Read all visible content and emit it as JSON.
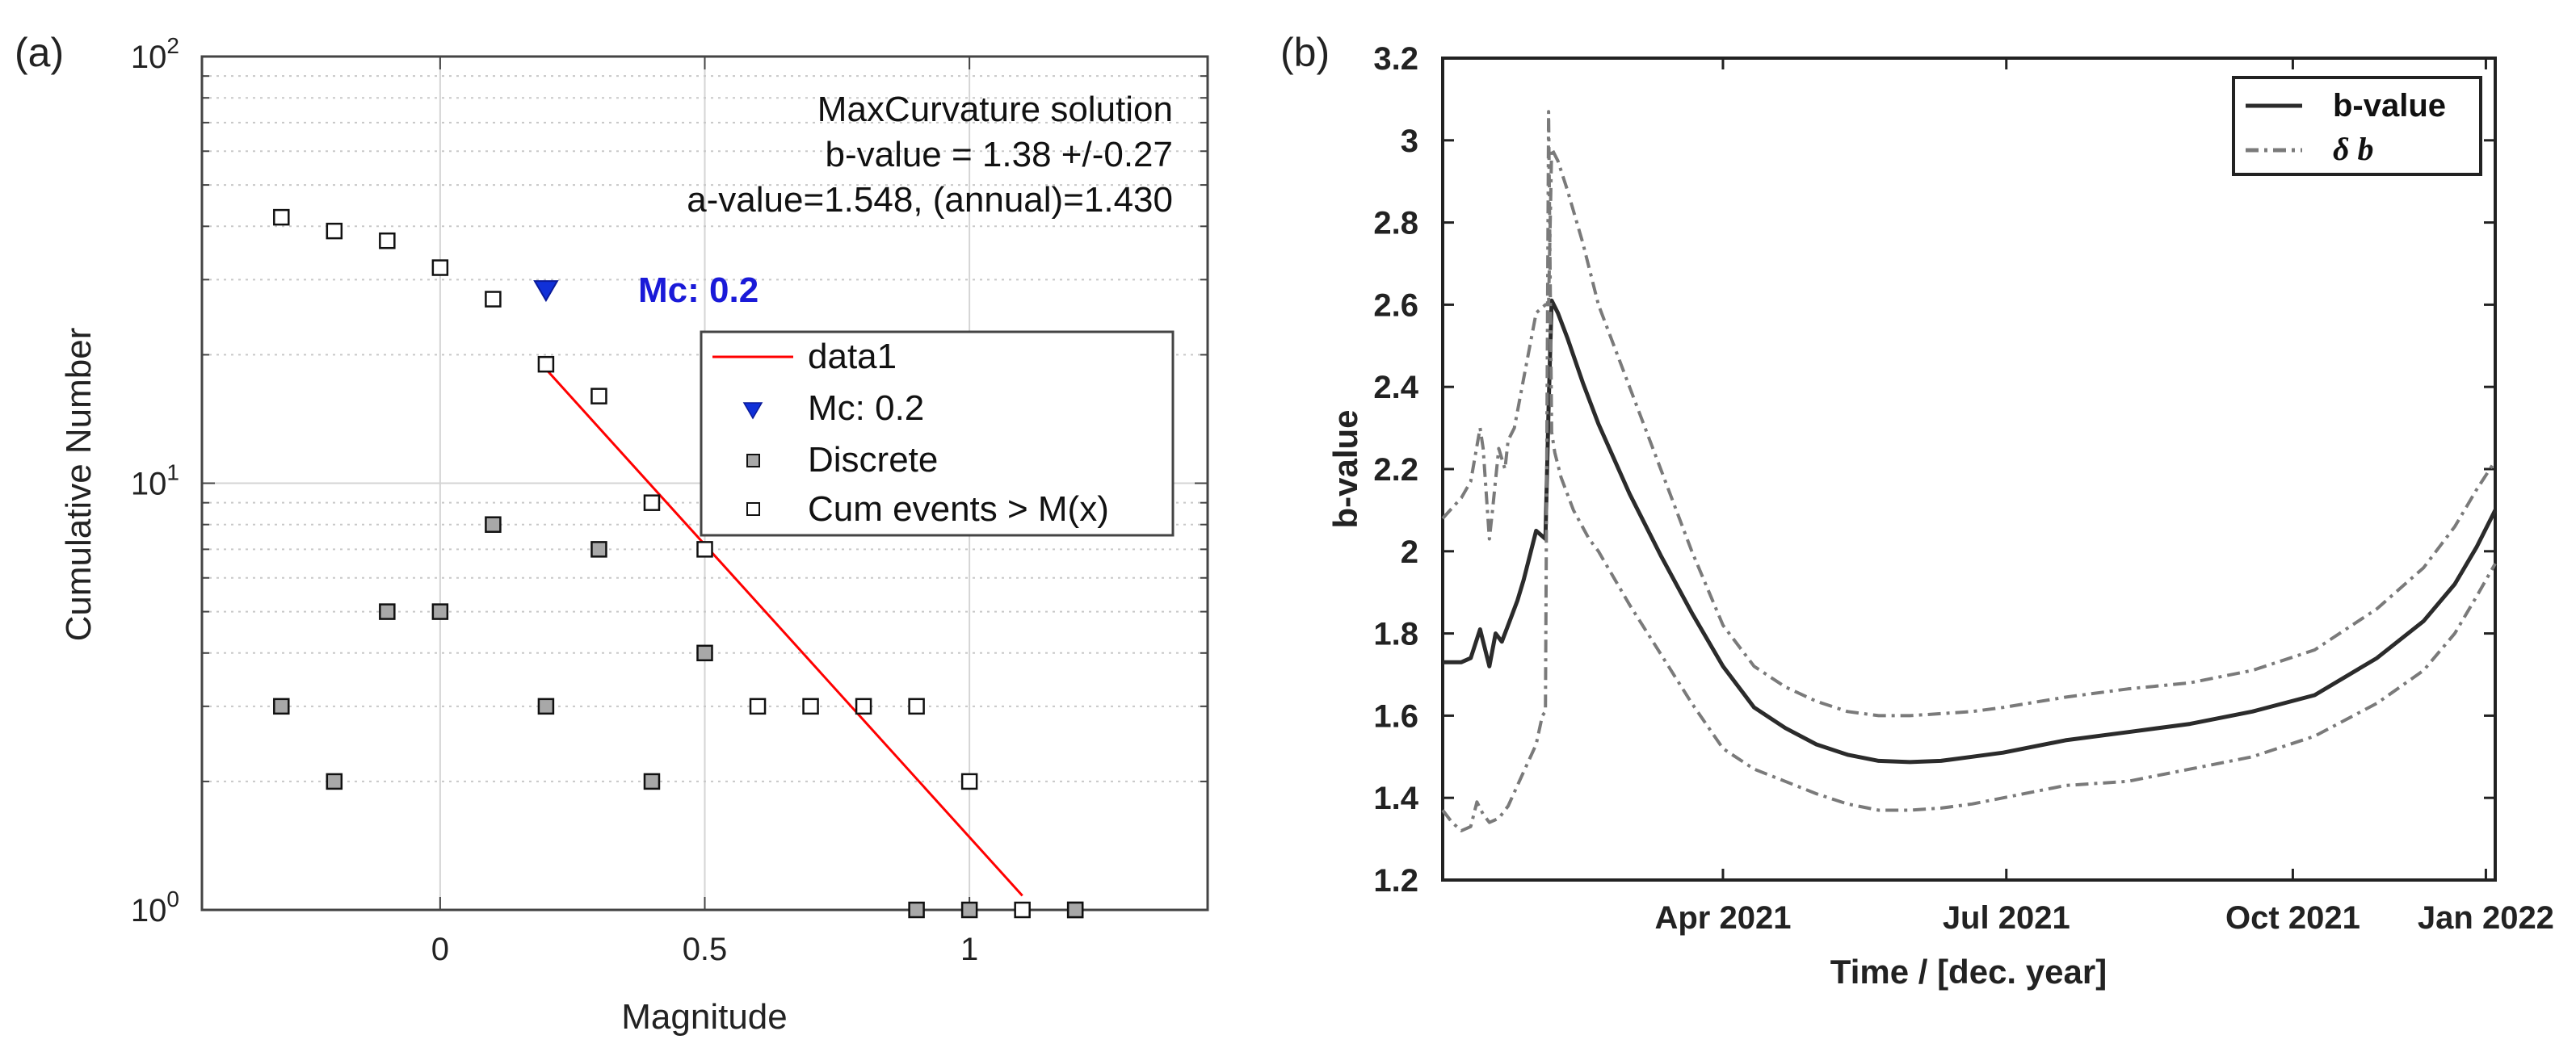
{
  "chart_data": [
    {
      "type": "scatter",
      "panel_label": "(a)",
      "xlabel": "Magnitude",
      "ylabel": "Cumulative Number",
      "xlim": [
        -0.45,
        1.45
      ],
      "ylim": [
        1,
        100
      ],
      "yscale": "log",
      "grid": true,
      "xticks": [
        0,
        0.5,
        1
      ],
      "xtick_labels": [
        "0",
        "0.5",
        "1"
      ],
      "ytick_bases": [
        "10",
        "10",
        "10"
      ],
      "ytick_exps": [
        "0",
        "1",
        "2"
      ],
      "annotations": [
        "MaxCurvature solution",
        "b-value = 1.38 +/-0.27",
        "a-value=1.548, (annual)=1.430"
      ],
      "mc_label": "Mc: 0.2",
      "legend": {
        "position": "right",
        "entries": [
          "data1",
          "Mc: 0.2",
          "Discrete",
          "Cum events > M(x)"
        ]
      },
      "series": [
        {
          "name": "Cum events > M(x)",
          "marker": "open-square",
          "x": [
            -0.3,
            -0.2,
            -0.1,
            0.0,
            0.1,
            0.2,
            0.3,
            0.4,
            0.5,
            0.6,
            0.7,
            0.8,
            0.9,
            1.0,
            1.1,
            1.2
          ],
          "y": [
            42,
            39,
            37,
            32,
            27,
            19,
            16,
            9,
            7,
            3,
            3,
            3,
            3,
            2,
            1,
            1
          ]
        },
        {
          "name": "Discrete",
          "marker": "filled-square",
          "x": [
            -0.3,
            -0.2,
            -0.1,
            0.0,
            0.1,
            0.2,
            0.3,
            0.4,
            0.5,
            0.9,
            1.0,
            1.2
          ],
          "y": [
            3,
            2,
            5,
            5,
            8,
            3,
            7,
            2,
            4,
            1,
            1,
            1
          ]
        },
        {
          "name": "Mc: 0.2",
          "marker": "triangle-down",
          "x": [
            0.2
          ],
          "y": [
            28.5
          ]
        },
        {
          "name": "data1",
          "style": "line",
          "x": [
            0.2,
            1.1
          ],
          "y": [
            18.5,
            1.08
          ]
        }
      ],
      "colors": {
        "fit": "#ff0000",
        "mc": "#1030d8",
        "mc_text": "#1a1ad8",
        "filled": "#a8a8a8"
      }
    },
    {
      "type": "line",
      "panel_label": "(b)",
      "xlabel": "Time / [dec. year]",
      "ylabel": "b-value",
      "xlim": [
        0,
        338
      ],
      "ylim": [
        1.2,
        3.2
      ],
      "grid": false,
      "xticks": [
        90,
        181,
        273,
        335
      ],
      "xtick_labels": [
        "Apr 2021",
        "Jul 2021",
        "Oct 2021",
        "Jan 2022"
      ],
      "yticks": [
        1.2,
        1.4,
        1.6,
        1.8,
        2,
        2.2,
        2.4,
        2.6,
        2.8,
        3,
        3.2
      ],
      "ytick_labels": [
        "1.2",
        "1.4",
        "1.6",
        "1.8",
        "2",
        "2.2",
        "2.4",
        "2.6",
        "2.8",
        "3",
        "3.2"
      ],
      "legend": {
        "position": "top-right",
        "entries": [
          "b-value",
          "δ b"
        ]
      },
      "series": [
        {
          "name": "b-value",
          "style": "solid",
          "x": [
            0,
            6,
            9,
            12,
            15,
            17,
            19,
            21,
            24,
            26,
            30,
            33,
            34,
            35,
            37,
            40,
            45,
            50,
            60,
            70,
            80,
            90,
            100,
            110,
            120,
            130,
            140,
            150,
            160,
            170,
            180,
            200,
            220,
            240,
            260,
            280,
            300,
            315,
            325,
            332,
            338
          ],
          "y": [
            1.73,
            1.73,
            1.74,
            1.81,
            1.72,
            1.8,
            1.78,
            1.82,
            1.88,
            1.93,
            2.05,
            2.03,
            2.35,
            2.61,
            2.58,
            2.52,
            2.41,
            2.31,
            2.14,
            1.99,
            1.85,
            1.72,
            1.62,
            1.57,
            1.53,
            1.505,
            1.49,
            1.487,
            1.49,
            1.5,
            1.51,
            1.54,
            1.56,
            1.58,
            1.61,
            1.65,
            1.74,
            1.83,
            1.92,
            2.01,
            2.1
          ]
        },
        {
          "name": "δ b",
          "style": "dash-dot",
          "x": [
            0,
            6,
            9,
            12,
            13,
            15,
            16,
            18,
            20,
            21,
            23,
            26,
            30,
            33,
            34,
            35,
            37,
            40,
            45,
            50,
            60,
            70,
            80,
            90,
            100,
            110,
            120,
            130,
            140,
            150,
            160,
            170,
            180,
            200,
            220,
            240,
            260,
            280,
            300,
            315,
            325,
            332,
            338
          ],
          "y": [
            2.08,
            2.13,
            2.17,
            2.3,
            2.25,
            2.03,
            2.1,
            2.25,
            2.2,
            2.27,
            2.3,
            2.42,
            2.58,
            2.6,
            2.6,
            2.98,
            2.95,
            2.88,
            2.75,
            2.6,
            2.4,
            2.2,
            2.0,
            1.82,
            1.72,
            1.67,
            1.635,
            1.61,
            1.6,
            1.6,
            1.605,
            1.61,
            1.62,
            1.645,
            1.665,
            1.68,
            1.71,
            1.76,
            1.86,
            1.96,
            2.06,
            2.15,
            2.22
          ]
        },
        {
          "name": "δ b (lower)",
          "style": "dash-dot",
          "x": [
            0,
            3,
            6,
            9,
            11,
            13,
            15,
            18,
            21,
            24,
            27,
            30,
            32,
            33,
            34,
            35,
            36,
            38,
            42,
            47,
            50,
            60,
            70,
            80,
            90,
            100,
            110,
            120,
            130,
            140,
            150,
            160,
            170,
            180,
            200,
            220,
            240,
            260,
            280,
            300,
            315,
            325,
            332,
            338
          ],
          "y": [
            1.37,
            1.34,
            1.32,
            1.33,
            1.39,
            1.36,
            1.34,
            1.35,
            1.38,
            1.43,
            1.48,
            1.53,
            1.6,
            1.61,
            3.07,
            2.29,
            2.24,
            2.18,
            2.1,
            2.03,
            2.0,
            1.87,
            1.75,
            1.63,
            1.52,
            1.47,
            1.44,
            1.41,
            1.385,
            1.37,
            1.37,
            1.375,
            1.385,
            1.4,
            1.43,
            1.44,
            1.47,
            1.5,
            1.55,
            1.63,
            1.71,
            1.8,
            1.89,
            1.97
          ]
        }
      ],
      "colors": {
        "b-value": "#2b2b2b",
        "delta": "#7a7a7a"
      }
    }
  ]
}
